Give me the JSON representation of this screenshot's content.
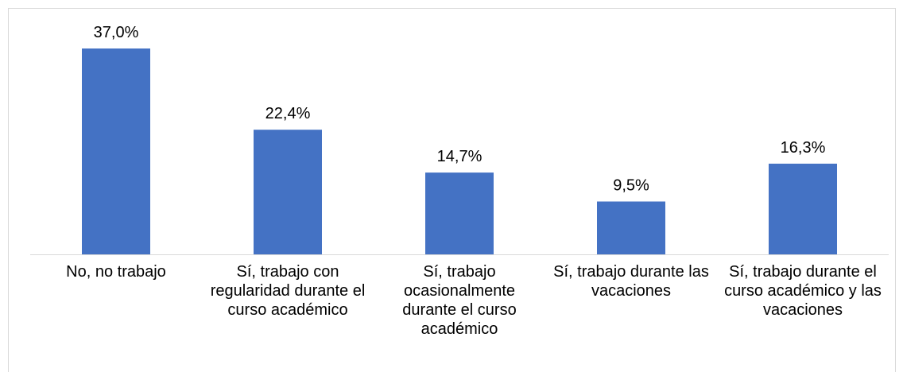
{
  "chart_data": {
    "type": "bar",
    "categories": [
      "No, no trabajo",
      "Sí, trabajo con regularidad durante el curso académico",
      "Sí, trabajo ocasionalmente durante el curso académico",
      "Sí, trabajo durante las vacaciones",
      "Sí, trabajo durante el curso académico y las vacaciones"
    ],
    "values": [
      37.0,
      22.4,
      14.7,
      9.5,
      16.3
    ],
    "value_labels": [
      "37,0%",
      "22,4%",
      "14,7%",
      "9,5%",
      "16,3%"
    ],
    "color": "#4472c4",
    "ylim": [
      0,
      40
    ]
  }
}
